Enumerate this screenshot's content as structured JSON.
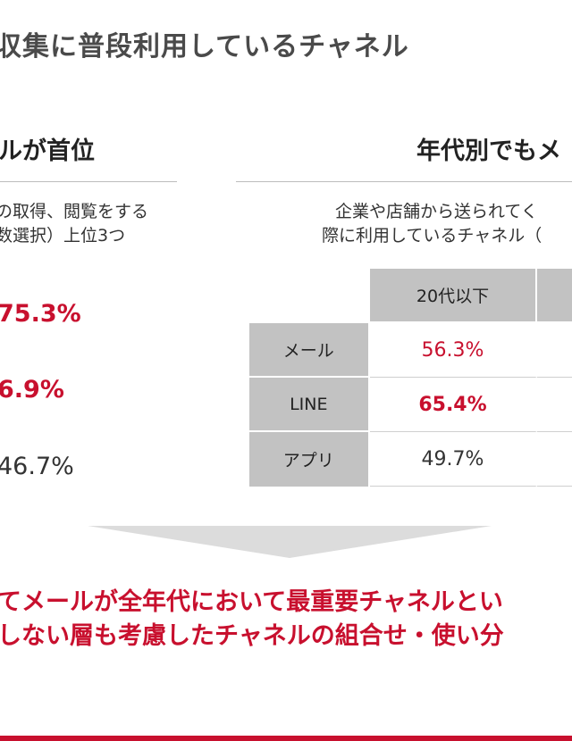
{
  "page": {
    "title": "収集に普段利用しているチャネル"
  },
  "left_section": {
    "heading": "ルが首位",
    "desc_lines": [
      "の取得、閲覧をする",
      "数選択）上位3つ"
    ],
    "stats": [
      "75.3%",
      "6.9%",
      "46.7%"
    ]
  },
  "right_section": {
    "heading": "年代別でもメ",
    "desc_lines": [
      "企業や店舗から送られてく",
      "際に利用しているチャネル（"
    ],
    "table": {
      "columns": [
        "20代以下",
        ""
      ],
      "rows": [
        {
          "label": "メール",
          "value": "56.3%"
        },
        {
          "label": "LINE",
          "value": "65.4%"
        },
        {
          "label": "アプリ",
          "value": "49.7%"
        }
      ]
    }
  },
  "conclusion": {
    "lines": [
      "てメールが全年代において最重要チャネルとい",
      "しない層も考慮したチャネルの組合せ・使い分"
    ]
  },
  "colors": {
    "accent": "#c8102e",
    "header_gray": "#c2c2c2",
    "arrow_gray": "#dcdcdc",
    "title_gray": "#4a4a4a"
  }
}
